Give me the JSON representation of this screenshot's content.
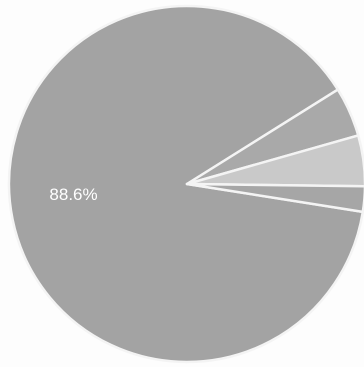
{
  "chart_data": {
    "type": "pie",
    "title": "",
    "slices": [
      {
        "label": "",
        "value": 88.6,
        "value_label": "88.6%",
        "color": "#a3a3a3"
      },
      {
        "label": "",
        "value": 4.5,
        "value_label": "",
        "color": "#a9a9a9"
      },
      {
        "label": "",
        "value": 4.6,
        "value_label": "",
        "color": "#c9c9c9"
      },
      {
        "label": "",
        "value": 2.3,
        "value_label": "",
        "color": "#a6a6a6"
      }
    ],
    "legend": "none"
  }
}
